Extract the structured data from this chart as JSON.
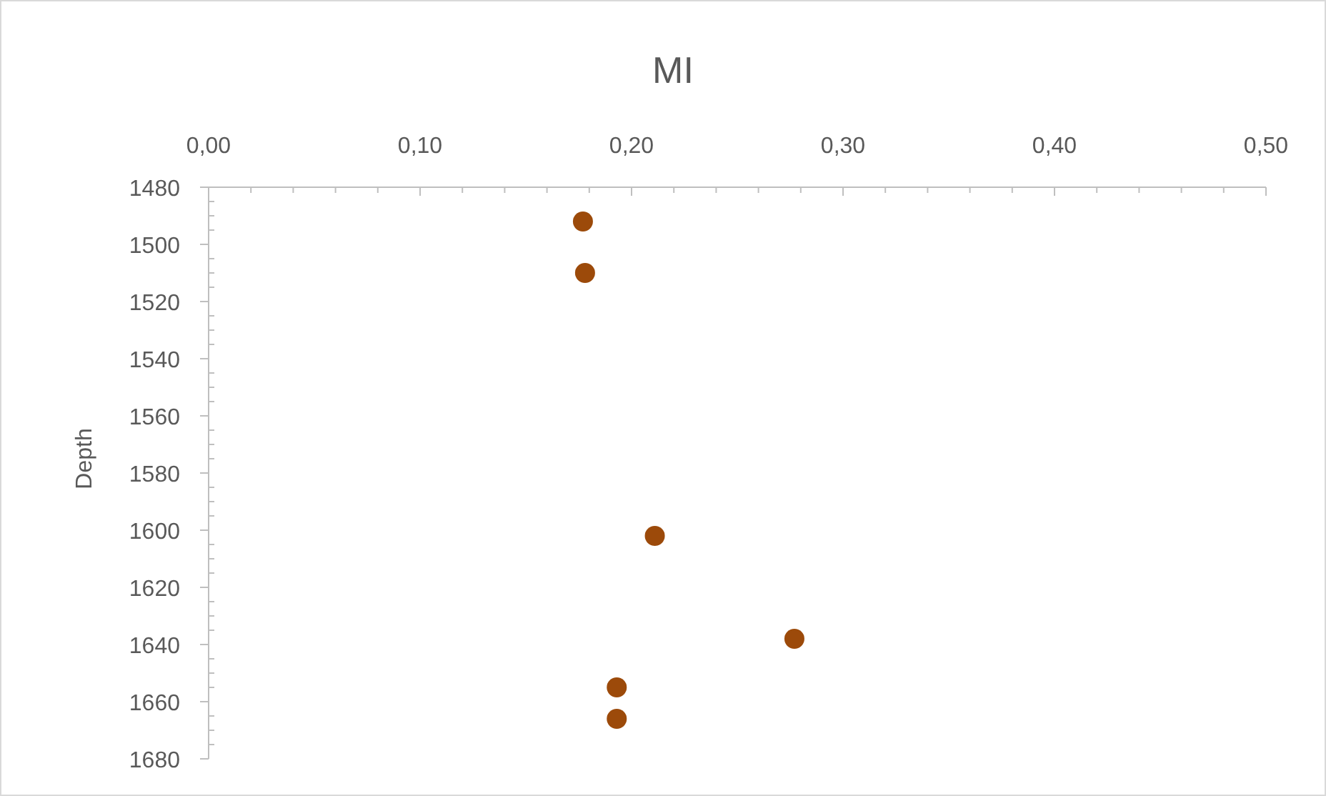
{
  "chart_data": {
    "type": "scatter",
    "title": "MI",
    "ylabel": "Depth",
    "x": [
      0.177,
      0.178,
      0.211,
      0.277,
      0.193,
      0.193
    ],
    "values": [
      1492,
      1510,
      1602,
      1638,
      1655,
      1666
    ],
    "color": "#9c4a0a",
    "marker": "circle",
    "grid": false,
    "xlim": [
      0,
      0.5
    ],
    "xticks": [
      {
        "value": 0,
        "label": "0,00"
      },
      {
        "value": 0.02,
        "label": null
      },
      {
        "value": 0.04,
        "label": null
      },
      {
        "value": 0.06,
        "label": null
      },
      {
        "value": 0.08,
        "label": null
      },
      {
        "value": 0.1,
        "label": "0,10"
      },
      {
        "value": 0.12,
        "label": null
      },
      {
        "value": 0.14,
        "label": null
      },
      {
        "value": 0.16,
        "label": null
      },
      {
        "value": 0.18,
        "label": null
      },
      {
        "value": 0.2,
        "label": "0,20"
      },
      {
        "value": 0.22,
        "label": null
      },
      {
        "value": 0.24,
        "label": null
      },
      {
        "value": 0.26,
        "label": null
      },
      {
        "value": 0.28,
        "label": null
      },
      {
        "value": 0.3,
        "label": "0,30"
      },
      {
        "value": 0.32,
        "label": null
      },
      {
        "value": 0.34,
        "label": null
      },
      {
        "value": 0.36,
        "label": null
      },
      {
        "value": 0.38,
        "label": null
      },
      {
        "value": 0.4,
        "label": "0,40"
      },
      {
        "value": 0.42,
        "label": null
      },
      {
        "value": 0.44,
        "label": null
      },
      {
        "value": 0.46,
        "label": null
      },
      {
        "value": 0.48,
        "label": null
      },
      {
        "value": 0.5,
        "label": "0,50"
      }
    ],
    "ylim": [
      1680,
      1480
    ],
    "yticks": [
      1480,
      {
        "value": 1485,
        "label": null
      },
      {
        "value": 1490,
        "label": null
      },
      {
        "value": 1495,
        "label": null
      },
      1500,
      {
        "value": 1505,
        "label": null
      },
      {
        "value": 1510,
        "label": null
      },
      {
        "value": 1515,
        "label": null
      },
      1520,
      {
        "value": 1525,
        "label": null
      },
      {
        "value": 1530,
        "label": null
      },
      {
        "value": 1535,
        "label": null
      },
      1540,
      {
        "value": 1545,
        "label": null
      },
      {
        "value": 1550,
        "label": null
      },
      {
        "value": 1555,
        "label": null
      },
      1560,
      {
        "value": 1565,
        "label": null
      },
      {
        "value": 1570,
        "label": null
      },
      {
        "value": 1575,
        "label": null
      },
      1580,
      {
        "value": 1585,
        "label": null
      },
      {
        "value": 1590,
        "label": null
      },
      {
        "value": 1595,
        "label": null
      },
      1600,
      {
        "value": 1605,
        "label": null
      },
      {
        "value": 1610,
        "label": null
      },
      {
        "value": 1615,
        "label": null
      },
      1620,
      {
        "value": 1625,
        "label": null
      },
      {
        "value": 1630,
        "label": null
      },
      {
        "value": 1635,
        "label": null
      },
      1640,
      {
        "value": 1645,
        "label": null
      },
      {
        "value": 1650,
        "label": null
      },
      {
        "value": 1655,
        "label": null
      },
      1660,
      {
        "value": 1665,
        "label": null
      },
      {
        "value": 1670,
        "label": null
      },
      {
        "value": 1675,
        "label": null
      },
      1680
    ]
  }
}
